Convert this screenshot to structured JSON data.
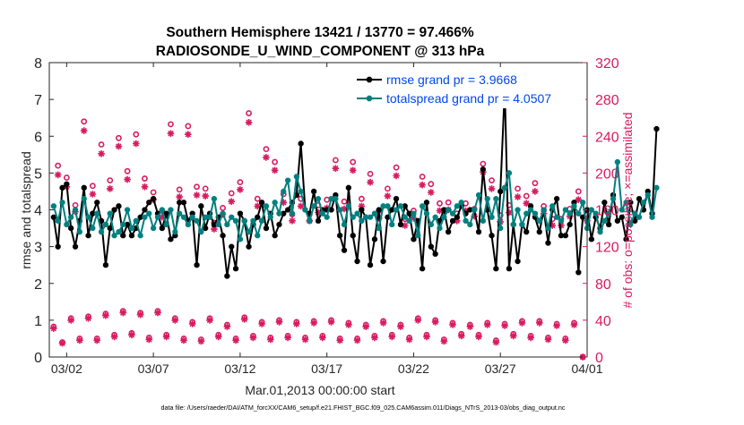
{
  "chart_data": {
    "type": "line",
    "title": "Southern Hemisphere 13421 / 13770 = 97.466%",
    "subtitle": "RADIOSONDE_U_WIND_COMPONENT @ 313 hPa",
    "xlabel": "Mar.01,2013 00:00:00 start",
    "ylabel_left": "rmse and totalspread",
    "ylabel_right": "# of obs: o=possible; ×=assimilated",
    "footer": "data file: /Users/raeder/DAI/ATM_forcXX/CAM6_setup/f.e21.FHIST_BGC.f09_025.CAM6assim.011/Diags_NTrS_2013-03/obs_diag_output.nc",
    "x_ticks": [
      {
        "label": "03/02",
        "day": 1.5
      },
      {
        "label": "03/07",
        "day": 6.5
      },
      {
        "label": "03/12",
        "day": 11.5
      },
      {
        "label": "03/17",
        "day": 16.5
      },
      {
        "label": "03/22",
        "day": 21.5
      },
      {
        "label": "03/27",
        "day": 26.5
      },
      {
        "label": "04/01",
        "day": 31.5
      }
    ],
    "xlim": [
      0.5,
      31.5
    ],
    "ylim_left": [
      0,
      8
    ],
    "yticks_left": [
      "0",
      "1",
      "2",
      "3",
      "4",
      "5",
      "6",
      "7",
      "8"
    ],
    "ylim_right": [
      0,
      320
    ],
    "yticks_right": [
      "0",
      "40",
      "80",
      "120",
      "160",
      "200",
      "240",
      "280",
      "320"
    ],
    "grid": false,
    "legend": {
      "location": "top-right",
      "entries": [
        {
          "label": "rmse grand pr = 3.9668",
          "color": "#000000"
        },
        {
          "label": "totalspread grand pr = 4.0507",
          "color": "#00807f"
        }
      ],
      "text_color": "#0047f0"
    },
    "colors": {
      "rmse": "#000000",
      "spread": "#00807f",
      "obs": "#d81b60"
    },
    "series": [
      {
        "name": "rmse",
        "axis": "left",
        "day_start": 0.75,
        "step": 0.25,
        "values": [
          3.8,
          3.0,
          4.6,
          4.7,
          3.5,
          3.0,
          3.7,
          4.6,
          3.3,
          3.9,
          4.2,
          3.7,
          2.5,
          3.5,
          4.0,
          4.1,
          3.3,
          3.6,
          3.3,
          3.5,
          3.8,
          4.0,
          4.2,
          4.3,
          3.9,
          3.5,
          3.9,
          3.2,
          3.3,
          4.2,
          4.2,
          3.7,
          3.9,
          2.5,
          4.1,
          3.5,
          3.9,
          3.6,
          3.8,
          3.3,
          2.2,
          3.0,
          2.4,
          3.9,
          3.7,
          3.0,
          3.6,
          3.8,
          4.2,
          3.5,
          3.9,
          3.3,
          3.6,
          3.9,
          4.0,
          4.2,
          4.4,
          5.8,
          4.0,
          3.9,
          4.5,
          3.7,
          4.0,
          4.0,
          4.0,
          4.4,
          3.3,
          2.9,
          4.6,
          3.3,
          2.6,
          4.0,
          3.8,
          2.5,
          3.2,
          4.0,
          2.6,
          3.8,
          4.0,
          4.3,
          3.6,
          4.1,
          3.9,
          3.2,
          3.7,
          2.4,
          4.2,
          3.0,
          2.8,
          3.7,
          4.0,
          3.4,
          3.7,
          3.8,
          4.1,
          3.9,
          4.0,
          4.0,
          3.4,
          5.1,
          4.0,
          3.3,
          2.4,
          4.5,
          7.3,
          2.4,
          3.6,
          2.6,
          3.6,
          3.4,
          4.1,
          3.8,
          3.4,
          4.0,
          3.1,
          4.0,
          4.3,
          3.3,
          3.3,
          3.6,
          4.2,
          2.3,
          3.8,
          4.0,
          3.2,
          3.8,
          3.5,
          4.2,
          3.6,
          4.4,
          3.7,
          3.8,
          3.2,
          4.2,
          3.7,
          4.3,
          4.0,
          4.5,
          3.9,
          6.2
        ]
      },
      {
        "name": "totalspread",
        "axis": "left",
        "day_start": 0.75,
        "step": 0.25,
        "values": [
          4.1,
          3.7,
          4.2,
          3.6,
          3.8,
          4.0,
          3.4,
          4.3,
          3.8,
          3.5,
          3.9,
          3.4,
          3.6,
          3.9,
          3.3,
          3.4,
          3.6,
          4.0,
          3.5,
          3.7,
          3.3,
          3.8,
          3.9,
          3.5,
          3.8,
          4.0,
          3.6,
          4.0,
          3.4,
          3.9,
          3.8,
          3.6,
          3.8,
          3.7,
          3.4,
          3.8,
          3.8,
          4.3,
          3.6,
          3.9,
          3.6,
          3.8,
          3.7,
          3.2,
          3.7,
          3.4,
          3.7,
          3.3,
          3.7,
          4.1,
          3.8,
          4.2,
          3.9,
          4.5,
          4.8,
          3.9,
          4.9,
          4.5,
          4.0,
          3.7,
          4.1,
          4.3,
          3.9,
          3.8,
          4.3,
          4.3,
          4.0,
          3.6,
          4.1,
          3.8,
          3.9,
          3.7,
          3.8,
          3.8,
          3.9,
          3.5,
          4.1,
          4.1,
          3.6,
          4.0,
          4.1,
          3.8,
          3.7,
          3.9,
          3.3,
          4.1,
          3.9,
          3.6,
          3.8,
          3.5,
          3.8,
          4.0,
          3.9,
          4.1,
          4.2,
          3.7,
          3.6,
          4.0,
          4.4,
          3.7,
          4.3,
          3.8,
          4.3,
          3.5,
          4.6,
          5.0,
          3.6,
          4.0,
          3.6,
          3.9,
          4.0,
          3.9,
          3.7,
          4.0,
          3.5,
          4.1,
          3.8,
          3.7,
          4.0,
          3.9,
          4.1,
          3.9,
          4.2,
          3.5,
          4.0,
          3.9,
          3.4,
          3.7,
          3.9,
          4.3,
          5.3,
          4.0,
          4.2,
          3.6,
          3.9,
          3.8,
          4.2,
          4.4,
          3.8,
          4.6
        ]
      },
      {
        "name": "obs possible (00Z/12Z)",
        "axis": "right",
        "marker": "circle",
        "day_start": 1.0,
        "step": 0.5,
        "values": [
          208,
          195,
          165,
          256,
          186,
          231,
          192,
          238,
          202,
          242,
          194,
          179,
          159,
          253,
          182,
          251,
          185,
          183,
          146,
          162,
          178,
          190,
          265,
          172,
          226,
          212,
          177,
          155,
          172,
          155,
          165,
          171,
          214,
          169,
          212,
          172,
          199,
          159,
          183,
          206,
          150,
          159,
          196,
          188,
          167,
          168,
          156,
          167,
          161,
          210,
          192,
          154,
          165,
          183,
          175,
          189,
          164,
          150,
          150,
          161,
          180,
          155
        ]
      },
      {
        "name": "obs assimilated (00Z/12Z)",
        "axis": "right",
        "marker": "star",
        "day_start": 1.0,
        "step": 0.5,
        "values": [
          198,
          185,
          158,
          246,
          177,
          221,
          183,
          229,
          193,
          232,
          185,
          171,
          152,
          243,
          174,
          242,
          176,
          175,
          139,
          155,
          169,
          182,
          255,
          164,
          217,
          203,
          168,
          148,
          164,
          148,
          157,
          162,
          205,
          161,
          203,
          164,
          190,
          151,
          175,
          197,
          143,
          151,
          187,
          179,
          159,
          160,
          148,
          159,
          153,
          201,
          183,
          147,
          157,
          174,
          167,
          180,
          156,
          143,
          143,
          153,
          171,
          148
        ]
      },
      {
        "name": "obs possible (06Z/18Z)",
        "axis": "right",
        "marker": "circle",
        "day_start": 0.75,
        "step": 0.5,
        "values": [
          33,
          16,
          42,
          20,
          44,
          20,
          47,
          24,
          50,
          26,
          48,
          21,
          50,
          24,
          42,
          20,
          38,
          19,
          42,
          24,
          35,
          20,
          43,
          23,
          38,
          21,
          40,
          23,
          38,
          21,
          39,
          23,
          40,
          20,
          37,
          20,
          35,
          23,
          39,
          24,
          35,
          21,
          42,
          24,
          40,
          19,
          37,
          25,
          35,
          24,
          37,
          18,
          36,
          25,
          39,
          23,
          39,
          21,
          36,
          20,
          37,
          0
        ]
      },
      {
        "name": "obs assimilated (06Z/18Z)",
        "axis": "right",
        "marker": "star",
        "day_start": 0.75,
        "step": 0.5,
        "values": [
          31,
          15,
          40,
          18,
          42,
          18,
          45,
          22,
          48,
          24,
          46,
          19,
          48,
          22,
          40,
          18,
          36,
          17,
          40,
          22,
          33,
          18,
          41,
          21,
          36,
          19,
          38,
          21,
          36,
          19,
          37,
          21,
          38,
          18,
          35,
          18,
          33,
          21,
          37,
          22,
          33,
          19,
          40,
          22,
          38,
          17,
          35,
          23,
          33,
          22,
          35,
          16,
          34,
          23,
          37,
          21,
          37,
          19,
          34,
          18,
          35,
          0
        ]
      }
    ]
  }
}
